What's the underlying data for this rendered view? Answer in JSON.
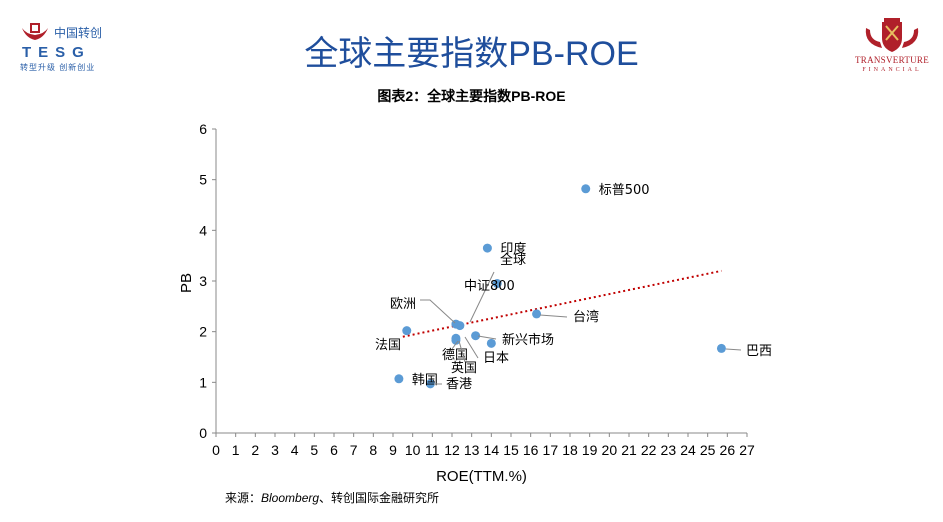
{
  "header": {
    "page_title": "全球主要指数PB-ROE",
    "logo_left": {
      "cn": "中国转创",
      "en": "TESG",
      "slogan": "转型升级 创新创业"
    },
    "logo_right": {
      "name": "TRANSVERTURE",
      "sub": "FINANCIAL"
    }
  },
  "source": {
    "prefix": "来源：",
    "italic": "Bloomberg",
    "suffix": "、转创国际金融研究所"
  },
  "colors": {
    "title": "#1f4e9c",
    "point": "#5b9bd5",
    "trend": "#c00000",
    "logo_red": "#b0202a",
    "logo_blue": "#2a5fa8"
  },
  "chart_data": {
    "type": "scatter",
    "title": "图表2：全球主要指数PB-ROE",
    "xlabel": "ROE(TTM.%)",
    "ylabel": "PB",
    "xlim": [
      0,
      27
    ],
    "ylim": [
      0,
      6
    ],
    "xticks": [
      "0",
      "1",
      "2",
      "3",
      "4",
      "5",
      "6",
      "7",
      "8",
      "9",
      "10",
      "11",
      "12",
      "13",
      "14",
      "15",
      "16",
      "17",
      "18",
      "19",
      "20",
      "21",
      "22",
      "23",
      "24",
      "25",
      "26",
      "27"
    ],
    "yticks": [
      "0",
      "1",
      "2",
      "3",
      "4",
      "5",
      "6"
    ],
    "grid": false,
    "legend": "none",
    "points": [
      {
        "label": "标普500",
        "x": 18.8,
        "y": 4.82
      },
      {
        "label": "印度",
        "x": 13.8,
        "y": 3.65
      },
      {
        "label": "全球",
        "x": 12.4,
        "y": 2.12
      },
      {
        "label": "中证800",
        "x": 14.3,
        "y": 2.95
      },
      {
        "label": "欧洲",
        "x": 12.2,
        "y": 2.15
      },
      {
        "label": "台湾",
        "x": 16.3,
        "y": 2.35
      },
      {
        "label": "法国",
        "x": 9.7,
        "y": 2.02
      },
      {
        "label": "新兴市场",
        "x": 14.0,
        "y": 1.77
      },
      {
        "label": "德国",
        "x": 12.2,
        "y": 1.87
      },
      {
        "label": "英国",
        "x": 12.2,
        "y": 1.83
      },
      {
        "label": "日本",
        "x": 13.2,
        "y": 1.92
      },
      {
        "label": "巴西",
        "x": 25.7,
        "y": 1.67
      },
      {
        "label": "韩国",
        "x": 9.3,
        "y": 1.07
      },
      {
        "label": "香港",
        "x": 10.9,
        "y": 0.97
      }
    ],
    "trendline": {
      "x": [
        9.5,
        25.7
      ],
      "y": [
        1.9,
        3.2
      ]
    }
  }
}
